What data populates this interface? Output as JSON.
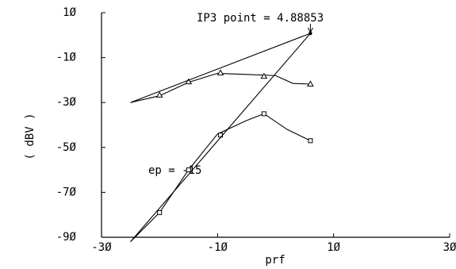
{
  "chart_data": {
    "type": "line",
    "title": "",
    "xlabel": "prf",
    "ylabel": "( dBV )",
    "xlim": [
      -30,
      30
    ],
    "ylim": [
      -90,
      10
    ],
    "x_ticks": [
      "-3Ø",
      "-1Ø",
      "1Ø",
      "3Ø"
    ],
    "x_tick_values": [
      -30,
      -10,
      10,
      30
    ],
    "y_ticks": [
      "1Ø",
      "-1Ø",
      "-3Ø",
      "-5Ø",
      "-7Ø",
      "-9Ø"
    ],
    "y_tick_values": [
      10,
      -10,
      -30,
      -50,
      -70,
      -90
    ],
    "grid": false,
    "series": [
      {
        "marker": "triangle",
        "x": [
          -25,
          -20,
          -15,
          -10,
          -5,
          0,
          3,
          6
        ],
        "y": [
          -30,
          -27,
          -21,
          -17,
          -17.5,
          -18,
          -21.5,
          -21.8
        ],
        "marker_x": [
          -20,
          -15,
          -9.5,
          -2,
          6
        ],
        "marker_y": [
          -26.7,
          -20.8,
          -16.8,
          -18.3,
          -21.8
        ]
      },
      {
        "marker": "square",
        "x": [
          -25,
          -20,
          -15,
          -10,
          -5,
          -2,
          2,
          6
        ],
        "y": [
          -92,
          -79,
          -60,
          -44,
          -38,
          -35,
          -42,
          -47
        ],
        "marker_x": [
          -20,
          -15,
          -9.5,
          -2,
          6
        ],
        "marker_y": [
          -79,
          -60,
          -44.5,
          -35,
          -47
        ]
      },
      {
        "marker": "none",
        "x": [
          -25,
          6
        ],
        "y": [
          -30,
          0.8
        ]
      },
      {
        "marker": "none",
        "x": [
          -25,
          6
        ],
        "y": [
          -92,
          0.8
        ]
      }
    ],
    "annotations": [
      {
        "text": "IP3 point = 4.88853",
        "x": 6,
        "y": 0.8
      },
      {
        "text": "ep = -15",
        "x": -15,
        "y": -60
      }
    ]
  }
}
